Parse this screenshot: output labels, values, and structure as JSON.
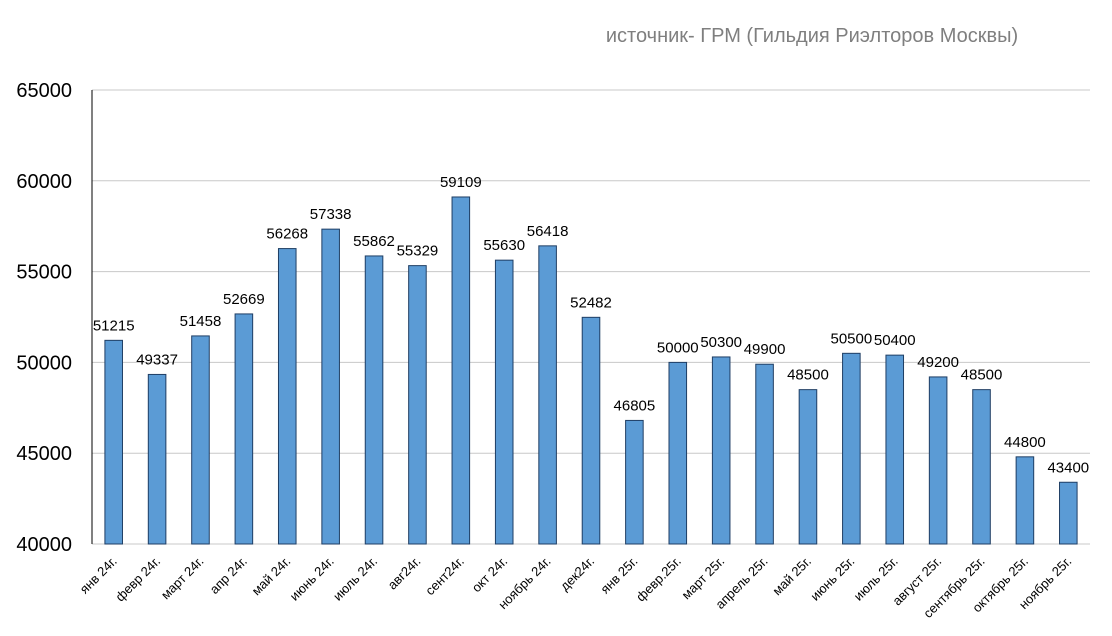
{
  "chart_data": {
    "type": "bar",
    "title": "",
    "subtitle": "источник- ГРМ (Гильдия Риэлторов Москвы)",
    "xlabel": "",
    "ylabel": "",
    "ylim": [
      40000,
      65000
    ],
    "yticks": [
      40000,
      45000,
      50000,
      55000,
      60000,
      65000
    ],
    "grid": true,
    "legend": "none",
    "bar_color": "#5B9BD5",
    "bar_edge_color": "#1F3E64",
    "grid_color": "#C8C8C8",
    "categories": [
      "янв 24г.",
      "февр 24г.",
      "март 24г.",
      "апр 24г.",
      "май 24г.",
      "июнь 24г.",
      "июль 24г.",
      "авг24г.",
      "сент24г.",
      "окт 24г.",
      "ноябрь 24г.",
      "дек24г.",
      "янв 25г.",
      "февр.25г.",
      "март 25г.",
      "апрель 25г.",
      "май 25г.",
      "июнь 25г.",
      "июль 25г.",
      "август 25г.",
      "сентябрь 25г.",
      "октябрь 25г.",
      "ноябрь 25г."
    ],
    "values": [
      51215,
      49337,
      51458,
      52669,
      56268,
      57338,
      55862,
      55329,
      59109,
      55630,
      56418,
      52482,
      46805,
      50000,
      50300,
      49900,
      48500,
      50500,
      50400,
      49200,
      48500,
      44800,
      43400
    ],
    "data_labels": [
      "51215",
      "49337",
      "51458",
      "52669",
      "56268",
      "57338",
      "55862",
      "55329",
      "59109",
      "55630",
      "56418",
      "52482",
      "46805",
      "50000",
      "50300",
      "49900",
      "48500",
      "50500",
      "50400",
      "49200",
      "48500",
      "44800",
      "43400"
    ]
  }
}
